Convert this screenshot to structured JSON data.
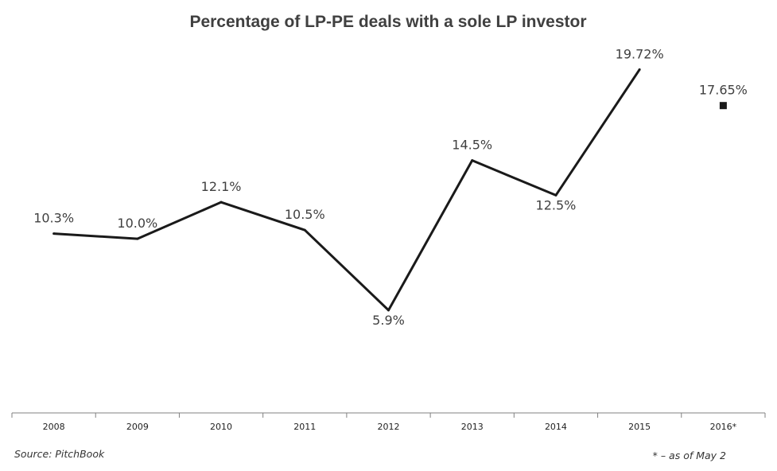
{
  "chart_data": {
    "type": "line",
    "title": "Percentage of LP-PE deals with a sole LP investor",
    "categories": [
      "2008",
      "2009",
      "2010",
      "2011",
      "2012",
      "2013",
      "2014",
      "2015",
      "2016*"
    ],
    "series": [
      {
        "values": [
          10.3,
          10.0,
          12.1,
          10.5,
          5.9,
          14.5,
          12.5,
          19.72,
          null
        ],
        "labels": [
          "10.3%",
          "10.0%",
          "12.1%",
          "10.5%",
          "5.9%",
          "14.5%",
          "12.5%",
          "19.72%",
          null
        ],
        "style": "line",
        "color": "#1a1a1a"
      },
      {
        "values": [
          null,
          null,
          null,
          null,
          null,
          null,
          null,
          null,
          17.65
        ],
        "labels": [
          null,
          null,
          null,
          null,
          null,
          null,
          null,
          null,
          "17.65%"
        ],
        "style": "marker-square",
        "color": "#1a1a1a"
      }
    ],
    "label_positions": [
      "above",
      "above",
      "above",
      "above",
      "below",
      "above",
      "below",
      "above",
      "above"
    ],
    "ylim": [
      0,
      22
    ],
    "grid": false,
    "xlabel": "",
    "ylabel": ""
  },
  "source_note": "Source: PitchBook",
  "footnote": "* – as of May 2",
  "colors": {
    "axis": "#808080",
    "text": "#404040",
    "line": "#1a1a1a"
  }
}
